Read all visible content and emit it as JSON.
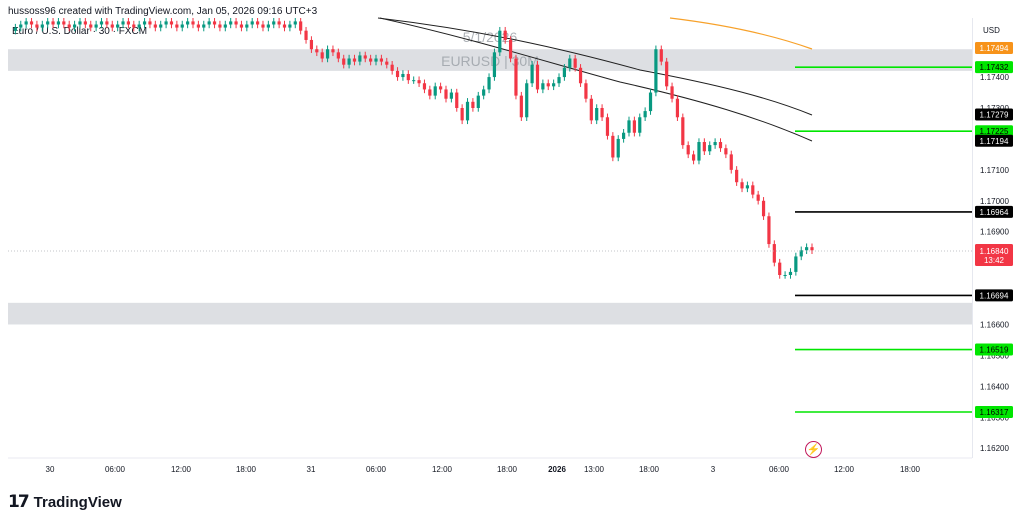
{
  "header": {
    "credit": "hussoss96 created with TradingView.com, Jan 05, 2026 09:16 UTC+3",
    "symbol": "Euro / U.S. Dollar · 30 · FXCM"
  },
  "watermark": {
    "date": "5/1/2026",
    "pair": "EURUSD | 30M"
  },
  "currency_label": "USD",
  "branding": {
    "mark": "17",
    "name": "TradingView"
  },
  "chart_data": {
    "type": "candlestick",
    "y_range": [
      1.1615,
      1.1757
    ],
    "y_ticks": [
      "1.17400",
      "1.17300",
      "1.17100",
      "1.17000",
      "1.16900",
      "1.16600",
      "1.16500",
      "1.16400",
      "1.16300",
      "1.16200"
    ],
    "time_ticks": [
      "30",
      "06:00",
      "12:00",
      "18:00",
      "31",
      "06:00",
      "12:00",
      "18:00",
      "2026",
      "13:00",
      "18:00",
      "3",
      "06:00",
      "12:00",
      "18:00"
    ],
    "last_price": {
      "value": "1.16840",
      "countdown": "13:42",
      "color": "#f23645"
    },
    "marked_levels": [
      {
        "label": "1.17494",
        "value": 1.17494,
        "role": "moving-average",
        "color": "#f7931a"
      },
      {
        "label": "1.17432",
        "value": 1.17432,
        "role": "target",
        "color": "#00e600"
      },
      {
        "label": "1.17279",
        "value": 1.17279,
        "role": "moving-average",
        "color": "#000000"
      },
      {
        "label": "1.17225",
        "value": 1.17225,
        "role": "target",
        "color": "#00e600"
      },
      {
        "label": "1.17194",
        "value": 1.17194,
        "role": "moving-average",
        "color": "#000000"
      },
      {
        "label": "1.16964",
        "value": 1.16964,
        "role": "level",
        "color": "#000000"
      },
      {
        "label": "1.16694",
        "value": 1.16694,
        "role": "level",
        "color": "#000000"
      },
      {
        "label": "1.16519",
        "value": 1.16519,
        "role": "target",
        "color": "#00e600"
      },
      {
        "label": "1.16317",
        "value": 1.16317,
        "role": "target",
        "color": "#00e600"
      }
    ],
    "zones": [
      {
        "from": 1.1742,
        "to": 1.1749
      },
      {
        "from": 1.166,
        "to": 1.1667
      }
    ],
    "close_series": [
      1.1755,
      1.1756,
      1.1757,
      1.1758,
      1.1757,
      1.1756,
      1.1757,
      1.1758,
      1.1757,
      1.1758,
      1.1757,
      1.1756,
      1.1757,
      1.1758,
      1.1757,
      1.1756,
      1.1757,
      1.1758,
      1.1757,
      1.1756,
      1.1757,
      1.1758,
      1.1757,
      1.1756,
      1.1757,
      1.1758,
      1.1757,
      1.1756,
      1.1757,
      1.1758,
      1.1757,
      1.1756,
      1.1757,
      1.1758,
      1.1757,
      1.1756,
      1.1757,
      1.1758,
      1.1757,
      1.1756,
      1.1757,
      1.1758,
      1.1757,
      1.1756,
      1.1757,
      1.1758,
      1.1757,
      1.1756,
      1.1757,
      1.1758,
      1.1757,
      1.1756,
      1.1757,
      1.1758,
      1.1755,
      1.1752,
      1.1749,
      1.1748,
      1.1746,
      1.1749,
      1.1748,
      1.1746,
      1.1744,
      1.1746,
      1.1745,
      1.1747,
      1.1746,
      1.1745,
      1.1746,
      1.1745,
      1.1744,
      1.1742,
      1.174,
      1.1741,
      1.1739,
      1.1739,
      1.1738,
      1.1736,
      1.1734,
      1.1737,
      1.1736,
      1.1733,
      1.1735,
      1.173,
      1.1726,
      1.1732,
      1.173,
      1.1734,
      1.1736,
      1.174,
      1.1748,
      1.1755,
      1.1752,
      1.1746,
      1.1734,
      1.1727,
      1.1738,
      1.1744,
      1.1736,
      1.1738,
      1.1737,
      1.1738,
      1.174,
      1.1743,
      1.1746,
      1.1743,
      1.1738,
      1.1733,
      1.1726,
      1.173,
      1.1727,
      1.1721,
      1.1714,
      1.172,
      1.1722,
      1.1726,
      1.1722,
      1.1727,
      1.1729,
      1.1735,
      1.1749,
      1.1745,
      1.1737,
      1.1733,
      1.1727,
      1.1718,
      1.1715,
      1.1713,
      1.1719,
      1.1716,
      1.1718,
      1.1719,
      1.1717,
      1.1715,
      1.171,
      1.1706,
      1.1704,
      1.1705,
      1.1702,
      1.17,
      1.1695,
      1.1686,
      1.168,
      1.1676,
      1.1676,
      1.1677,
      1.1682,
      1.1684,
      1.1685,
      1.1684
    ]
  }
}
